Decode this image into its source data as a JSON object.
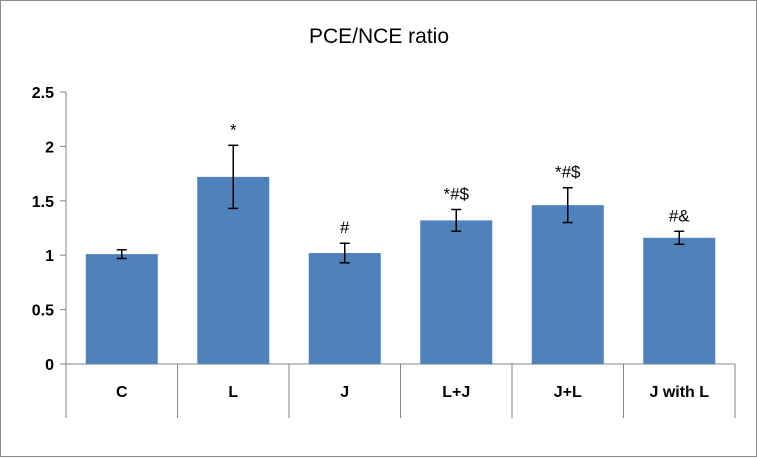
{
  "chart_data": {
    "type": "bar",
    "title": "PCE/NCE ratio",
    "xlabel": "",
    "ylabel": "",
    "categories": [
      "C",
      "L",
      "J",
      "L+J",
      "J+L",
      "J with L"
    ],
    "values": [
      1.01,
      1.72,
      1.02,
      1.32,
      1.46,
      1.16
    ],
    "error": [
      0.04,
      0.29,
      0.09,
      0.1,
      0.16,
      0.06
    ],
    "annotations": [
      "",
      "*",
      "#",
      "*#$",
      "*#$",
      "#&"
    ],
    "ylim": [
      0,
      2.5
    ],
    "yticks": [
      "0",
      "0.5",
      "1",
      "1.5",
      "2",
      "2.5"
    ],
    "grid": false,
    "legend": "none",
    "colors": {
      "bar": "#4f81bd",
      "axis": "#868686",
      "error": "#000000"
    }
  }
}
